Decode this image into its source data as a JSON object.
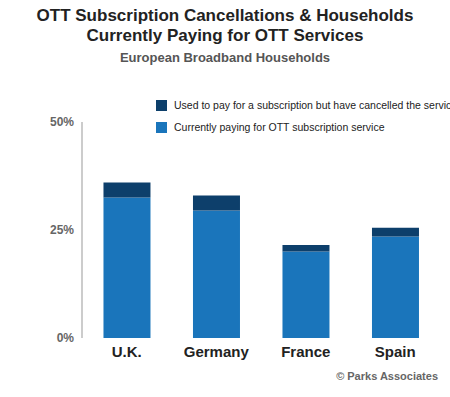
{
  "chart_data": {
    "type": "bar",
    "title": "OTT Subscription Cancellations & Households Currently Paying for OTT Services",
    "subtitle": "European Broadband Households",
    "categories": [
      "U.K.",
      "Germany",
      "France",
      "Spain"
    ],
    "series": [
      {
        "name": "Currently paying for OTT subscription service",
        "color": "#1a75bb",
        "values": [
          32.5,
          29.5,
          20,
          23.5
        ]
      },
      {
        "name": "Used to pay for a subscription but have cancelled the services",
        "color": "#0d3f6b",
        "values": [
          3.5,
          3.5,
          1.5,
          2
        ]
      }
    ],
    "stacked": true,
    "ylim": [
      0,
      50
    ],
    "yticks": [
      {
        "value": 0,
        "label": "0%"
      },
      {
        "value": 25,
        "label": "25%"
      },
      {
        "value": 50,
        "label": "50%"
      }
    ],
    "grid": false,
    "legend": "top",
    "annotations": [
      "© Parks Associates"
    ]
  }
}
